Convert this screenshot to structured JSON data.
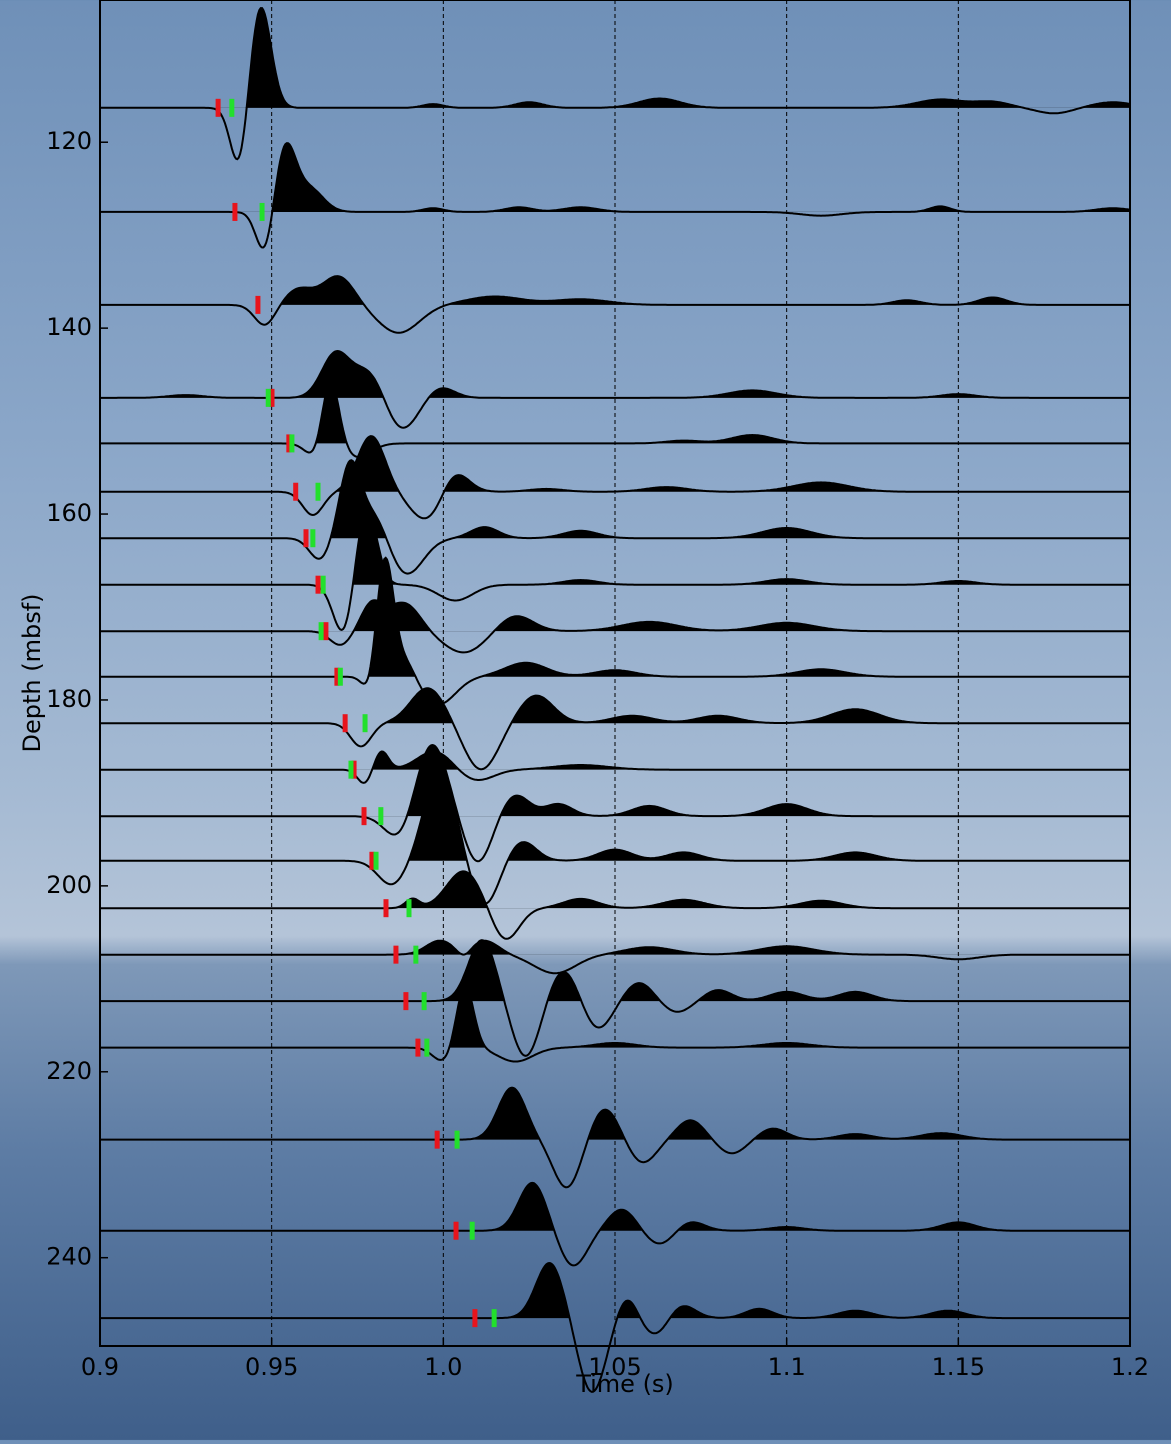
{
  "chart_data": {
    "type": "wiggle",
    "xlabel": "Time (s)",
    "ylabel": "Depth (mbsf)",
    "xlim": [
      0.9,
      1.2
    ],
    "ylim": [
      104.7,
      249.5
    ],
    "y_inverted": true,
    "xticks": [
      0.9,
      0.95,
      {
        "value": 1,
        "label": "1.0"
      },
      1.05,
      1.1,
      1.15,
      1.2
    ],
    "yticks": [
      120,
      140,
      160,
      180,
      200,
      220,
      240
    ],
    "grid": "x-dashed",
    "trace_color": "#000000",
    "red_pick_color": "#e8141c",
    "green_pick_color": "#22e02c",
    "traces": [
      {
        "depth": 116.3,
        "red_pick": 0.9344,
        "green_pick": 0.9384,
        "wavelets": [
          [
            0.9468,
            11,
            0.003
          ],
          [
            0.9405,
            -6.5,
            0.0025
          ],
          [
            0.997,
            0.4,
            0.003
          ],
          [
            1.025,
            0.6,
            0.004
          ],
          [
            1.063,
            1.0,
            0.006
          ],
          [
            1.145,
            0.9,
            0.007
          ],
          [
            1.16,
            0.6,
            0.005
          ],
          [
            1.178,
            -0.6,
            0.005
          ],
          [
            1.195,
            0.6,
            0.006
          ]
        ]
      },
      {
        "depth": 127.5,
        "red_pick": 0.9393,
        "green_pick": 0.9472,
        "wavelets": [
          [
            0.954,
            7,
            0.003
          ],
          [
            0.948,
            -4.6,
            0.0025
          ],
          [
            0.961,
            2.5,
            0.004
          ],
          [
            0.997,
            0.4,
            0.003
          ],
          [
            1.022,
            0.5,
            0.004
          ],
          [
            1.04,
            0.5,
            0.005
          ],
          [
            1.11,
            -0.4,
            0.006
          ],
          [
            1.1447,
            0.6,
            0.003
          ],
          [
            1.195,
            0.4,
            0.005
          ]
        ]
      },
      {
        "depth": 137.5,
        "red_pick": 0.946,
        "green_pick": null,
        "wavelets": [
          [
            0.948,
            -2.2,
            0.003
          ],
          [
            0.958,
            1.7,
            0.004
          ],
          [
            0.967,
            1.5,
            0.004
          ],
          [
            0.971,
            2.0,
            0.004
          ],
          [
            0.987,
            -3,
            0.006
          ],
          [
            1.015,
            0.9,
            0.008
          ],
          [
            1.04,
            0.6,
            0.008
          ],
          [
            1.135,
            0.5,
            0.004
          ],
          [
            1.16,
            0.8,
            0.004
          ]
        ]
      },
      {
        "depth": 147.5,
        "red_pick": 0.9501,
        "green_pick": 0.949,
        "wavelets": [
          [
            0.925,
            0.3,
            0.005
          ],
          [
            0.9685,
            4.6,
            0.004
          ],
          [
            0.979,
            3.5,
            0.005
          ],
          [
            0.987,
            -4,
            0.005
          ],
          [
            0.999,
            1.2,
            0.004
          ],
          [
            1.09,
            0.8,
            0.007
          ],
          [
            1.15,
            0.4,
            0.005
          ]
        ]
      },
      {
        "depth": 152.4,
        "red_pick": 0.955,
        "green_pick": 0.9559,
        "wavelets": [
          [
            0.9635,
            -2,
            0.003
          ],
          [
            0.967,
            7.8,
            0.0025
          ],
          [
            0.975,
            -1.5,
            0.004
          ],
          [
            1.07,
            0.3,
            0.005
          ],
          [
            1.09,
            0.9,
            0.006
          ]
        ]
      },
      {
        "depth": 157.6,
        "red_pick": 0.957,
        "green_pick": 0.9635,
        "wavelets": [
          [
            0.962,
            -2.5,
            0.003
          ],
          [
            0.979,
            6,
            0.004
          ],
          [
            0.9955,
            -3.2,
            0.005
          ],
          [
            1.003,
            2.6,
            0.004
          ],
          [
            1.03,
            0.3,
            0.005
          ],
          [
            1.065,
            0.5,
            0.006
          ],
          [
            1.11,
            1.0,
            0.008
          ]
        ]
      },
      {
        "depth": 162.6,
        "red_pick": 0.96,
        "green_pick": 0.962,
        "wavelets": [
          [
            0.964,
            -2.3,
            0.003
          ],
          [
            0.9728,
            7.8,
            0.003
          ],
          [
            0.98,
            3,
            0.004
          ],
          [
            0.989,
            -4,
            0.005
          ],
          [
            1.012,
            1.2,
            0.004
          ],
          [
            1.04,
            0.8,
            0.005
          ],
          [
            1.1,
            1.1,
            0.007
          ]
        ]
      },
      {
        "depth": 167.6,
        "red_pick": 0.9635,
        "green_pick": 0.965,
        "wavelets": [
          [
            0.971,
            -5.5,
            0.003
          ],
          [
            0.9775,
            8.6,
            0.003
          ],
          [
            1.0035,
            -1.7,
            0.005
          ],
          [
            1.04,
            0.5,
            0.005
          ],
          [
            1.1,
            0.6,
            0.006
          ],
          [
            1.15,
            0.4,
            0.005
          ]
        ]
      },
      {
        "depth": 172.6,
        "red_pick": 0.9658,
        "green_pick": 0.9644,
        "wavelets": [
          [
            0.97,
            -1.5,
            0.003
          ],
          [
            0.979,
            2.7,
            0.003
          ],
          [
            0.985,
            1.5,
            0.004
          ],
          [
            0.99,
            2.2,
            0.004
          ],
          [
            1.006,
            -2.3,
            0.006
          ],
          [
            1.021,
            1.7,
            0.005
          ],
          [
            1.06,
            1.0,
            0.008
          ],
          [
            1.1,
            0.9,
            0.008
          ]
        ]
      },
      {
        "depth": 177.5,
        "red_pick": 0.969,
        "green_pick": 0.97,
        "wavelets": [
          [
            0.9786,
            -2,
            0.002
          ],
          [
            0.983,
            12.7,
            0.0025
          ],
          [
            0.989,
            2,
            0.003
          ],
          [
            0.9985,
            -3,
            0.005
          ],
          [
            1.024,
            1.5,
            0.006
          ],
          [
            1.05,
            0.7,
            0.006
          ],
          [
            1.11,
            0.8,
            0.007
          ]
        ]
      },
      {
        "depth": 182.5,
        "red_pick": 0.9714,
        "green_pick": 0.9772,
        "wavelets": [
          [
            0.976,
            -2.5,
            0.003
          ],
          [
            0.9955,
            3.8,
            0.005
          ],
          [
            1.011,
            -5,
            0.005
          ],
          [
            1.027,
            3,
            0.005
          ],
          [
            1.055,
            0.8,
            0.006
          ],
          [
            1.08,
            0.8,
            0.006
          ],
          [
            1.12,
            1.5,
            0.007
          ]
        ]
      },
      {
        "depth": 187.5,
        "red_pick": 0.974,
        "green_pick": 0.9731,
        "wavelets": [
          [
            0.977,
            -1.5,
            0.002
          ],
          [
            0.982,
            2,
            0.002
          ],
          [
            0.9975,
            2,
            0.005
          ],
          [
            1.0095,
            -1.2,
            0.005
          ],
          [
            1.04,
            0.5,
            0.008
          ]
        ]
      },
      {
        "depth": 192.5,
        "red_pick": 0.9769,
        "green_pick": 0.9818,
        "wavelets": [
          [
            0.987,
            -2.5,
            0.004
          ],
          [
            0.9967,
            7.8,
            0.0045
          ],
          [
            1.01,
            -5,
            0.004
          ],
          [
            1.021,
            2.3,
            0.004
          ],
          [
            1.0335,
            1.3,
            0.004
          ],
          [
            1.06,
            1.1,
            0.005
          ],
          [
            1.1,
            1.3,
            0.006
          ]
        ]
      },
      {
        "depth": 197.3,
        "red_pick": 0.9792,
        "green_pick": 0.9804,
        "wavelets": [
          [
            0.985,
            -2.6,
            0.004
          ],
          [
            0.999,
            9.8,
            0.0045
          ],
          [
            1.012,
            -4.8,
            0.004
          ],
          [
            1.023,
            2.1,
            0.004
          ],
          [
            1.05,
            1.2,
            0.005
          ],
          [
            1.07,
            0.9,
            0.005
          ],
          [
            1.12,
            0.9,
            0.006
          ]
        ]
      },
      {
        "depth": 202.4,
        "red_pick": 0.9833,
        "green_pick": 0.99,
        "wavelets": [
          [
            0.991,
            1,
            0.002
          ],
          [
            1.006,
            4,
            0.005
          ],
          [
            1.018,
            -3.5,
            0.004
          ],
          [
            1.04,
            1.0,
            0.005
          ],
          [
            1.07,
            0.9,
            0.006
          ],
          [
            1.11,
            0.8,
            0.006
          ]
        ]
      },
      {
        "depth": 207.4,
        "red_pick": 0.9862,
        "green_pick": 0.992,
        "wavelets": [
          [
            0.999,
            1.5,
            0.004
          ],
          [
            1.006,
            -0.8,
            0.002
          ],
          [
            1.012,
            1.5,
            0.004
          ],
          [
            1.0325,
            -2,
            0.006
          ],
          [
            1.06,
            0.8,
            0.007
          ],
          [
            1.1,
            0.9,
            0.008
          ],
          [
            1.15,
            -0.5,
            0.006
          ]
        ]
      },
      {
        "depth": 212.4,
        "red_pick": 0.9891,
        "green_pick": 0.9944,
        "wavelets": [
          [
            1.0113,
            6.6,
            0.004
          ],
          [
            1.024,
            -6,
            0.004
          ],
          [
            1.035,
            3.4,
            0.004
          ],
          [
            1.045,
            -3,
            0.004
          ],
          [
            1.057,
            2.0,
            0.004
          ],
          [
            1.068,
            -1.2,
            0.004
          ],
          [
            1.08,
            1.2,
            0.004
          ],
          [
            1.1,
            1.0,
            0.005
          ],
          [
            1.12,
            1.0,
            0.005
          ]
        ]
      },
      {
        "depth": 217.4,
        "red_pick": 0.9926,
        "green_pick": 0.9952,
        "wavelets": [
          [
            1.0,
            -1.5,
            0.003
          ],
          [
            1.0063,
            6.8,
            0.0025
          ],
          [
            1.021,
            -1.5,
            0.005
          ],
          [
            1.05,
            0.5,
            0.006
          ],
          [
            1.1,
            0.5,
            0.007
          ]
        ]
      },
      {
        "depth": 227.3,
        "red_pick": 0.9982,
        "green_pick": 1.004,
        "wavelets": [
          [
            1.02,
            5.6,
            0.004
          ],
          [
            1.036,
            -5.2,
            0.004
          ],
          [
            1.047,
            3.4,
            0.004
          ],
          [
            1.058,
            -2.5,
            0.004
          ],
          [
            1.072,
            2.1,
            0.004
          ],
          [
            1.084,
            -1.5,
            0.004
          ],
          [
            1.096,
            1.2,
            0.004
          ],
          [
            1.12,
            0.6,
            0.005
          ],
          [
            1.145,
            0.7,
            0.006
          ]
        ]
      },
      {
        "depth": 237.1,
        "red_pick": 1.0037,
        "green_pick": 1.0084,
        "wavelets": [
          [
            1.026,
            5.2,
            0.004
          ],
          [
            1.0378,
            -3.8,
            0.004
          ],
          [
            1.052,
            2.3,
            0.004
          ],
          [
            1.063,
            -1.5,
            0.004
          ],
          [
            1.072,
            1.0,
            0.004
          ],
          [
            1.1,
            0.4,
            0.005
          ],
          [
            1.15,
            0.9,
            0.005
          ]
        ]
      },
      {
        "depth": 246.5,
        "red_pick": 1.0092,
        "green_pick": 1.0148,
        "wavelets": [
          [
            1.031,
            6,
            0.004
          ],
          [
            1.0433,
            -8,
            0.004
          ],
          [
            1.0535,
            2.4,
            0.003
          ],
          [
            1.062,
            -2,
            0.004
          ],
          [
            1.069,
            1.6,
            0.004
          ],
          [
            1.092,
            1.0,
            0.004
          ],
          [
            1.12,
            0.8,
            0.005
          ],
          [
            1.147,
            0.8,
            0.005
          ]
        ]
      }
    ]
  }
}
